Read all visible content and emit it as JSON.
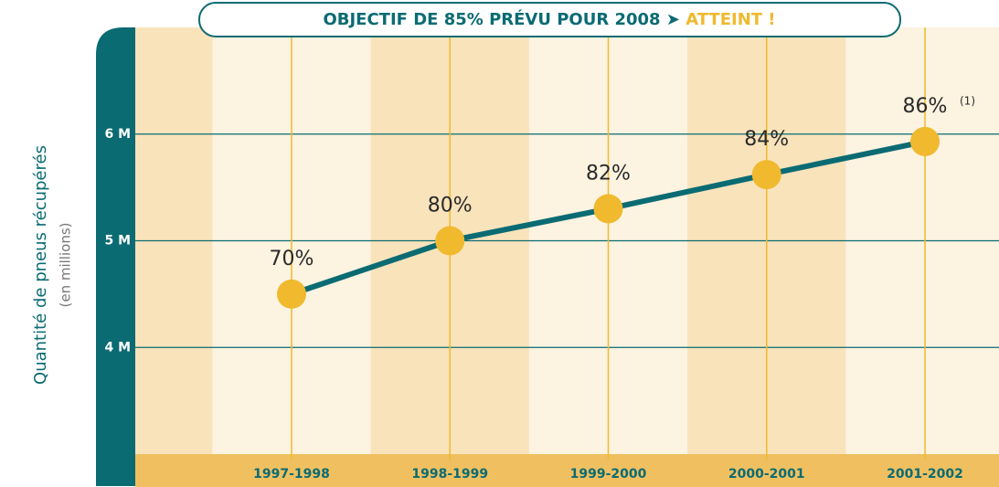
{
  "chart_data": {
    "type": "line",
    "title": "OBJECTIF DE 85% PRÉVU POUR 2008 ➤",
    "title_highlight": "ATTEINT !",
    "ylabel": "Quantité de pneus récupérés",
    "ylabel_sub": "(en millions)",
    "categories": [
      "1997-1998",
      "1998-1999",
      "1999-2000",
      "2000-2001",
      "2001-2002"
    ],
    "series": [
      {
        "name": "Quantité de pneus récupérés",
        "color": "#0b6b73",
        "marker_color": "#f0b92e",
        "values": [
          4.5,
          5.0,
          5.3,
          5.62,
          5.93
        ]
      }
    ],
    "rate_labels": [
      "70%",
      "80%",
      "82%",
      "84%",
      "86%"
    ],
    "footnote": "(1)",
    "ylim": [
      3,
      7
    ],
    "yticks": [
      {
        "value": 4,
        "label": "4 M"
      },
      {
        "value": 5,
        "label": "5 M"
      },
      {
        "value": 6,
        "label": "6 M"
      }
    ],
    "grid": true
  }
}
